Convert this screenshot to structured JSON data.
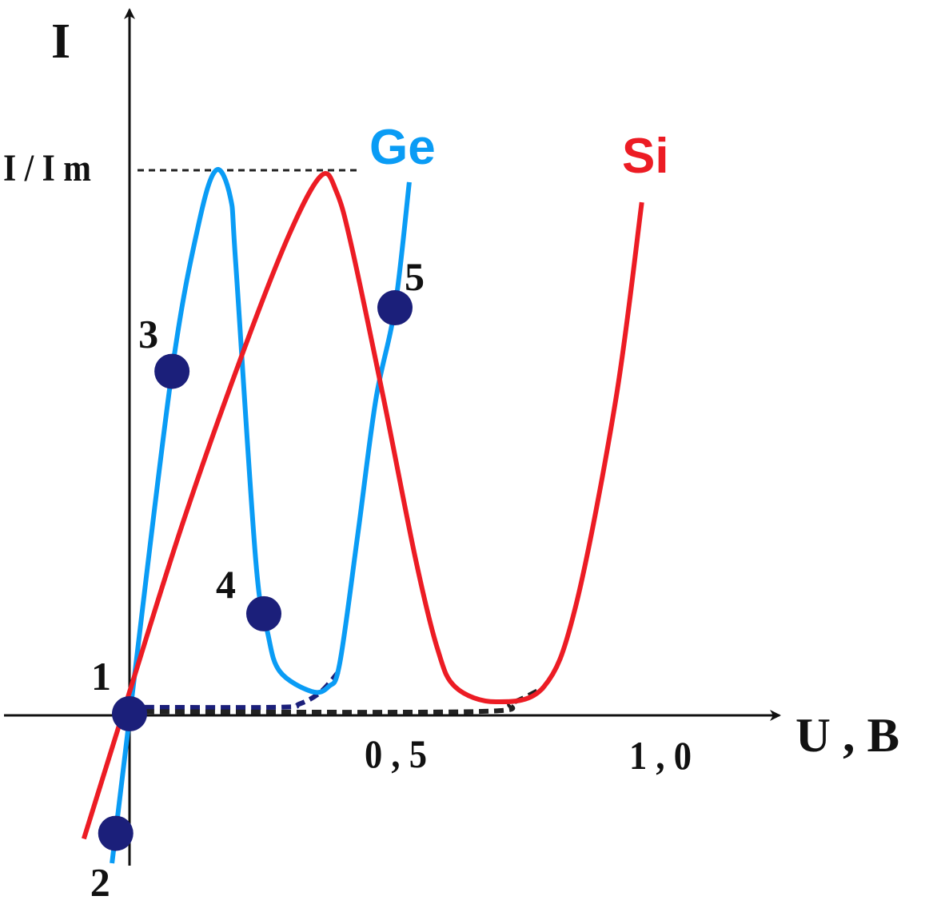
{
  "chart_data": {
    "type": "line",
    "title": "",
    "y_axis_label": "I",
    "y_tick_label": "I / I m",
    "x_axis_label": "U , B",
    "x_ticks": [
      {
        "value": 0.5,
        "label": "0 , 5"
      },
      {
        "value": 1.0,
        "label": "1 , 0"
      }
    ],
    "xlim": [
      -0.24,
      1.22
    ],
    "ylim": [
      -0.28,
      1.3
    ],
    "peak_level": 1.0,
    "colors": {
      "Ge": "#0a9cf5",
      "Si": "#ec1c24",
      "points": "#1b1f7a",
      "axis": "#111111"
    },
    "series": [
      {
        "name": "Ge",
        "x": [
          -0.033,
          0.005,
          0.08,
          0.13,
          0.163,
          0.19,
          0.2,
          0.238,
          0.26,
          0.283,
          0.343,
          0.375,
          0.396,
          0.43,
          0.464,
          0.5,
          0.527
        ],
        "y": [
          -0.275,
          0.034,
          0.63,
          0.9,
          1.0,
          0.95,
          0.83,
          0.28,
          0.15,
          0.078,
          0.041,
          0.05,
          0.093,
          0.33,
          0.578,
          0.747,
          0.978
        ]
      },
      {
        "name": "Si",
        "x": [
          -0.086,
          0.0,
          0.1,
          0.208,
          0.3,
          0.361,
          0.39,
          0.419,
          0.479,
          0.539,
          0.58,
          0.614,
          0.69,
          0.78,
          0.84,
          0.916,
          0.965
        ],
        "y": [
          -0.23,
          0.04,
          0.35,
          0.65,
          0.88,
          0.99,
          0.96,
          0.857,
          0.578,
          0.284,
          0.12,
          0.049,
          0.022,
          0.049,
          0.196,
          0.578,
          0.941
        ]
      }
    ],
    "dashed_curves": [
      {
        "color": "#1b1f7a",
        "x": [
          0.0,
          0.28,
          0.32,
          0.36,
          0.396
        ],
        "y": [
          0.012,
          0.012,
          0.018,
          0.04,
          0.08
        ]
      },
      {
        "color": "#222222",
        "x": [
          0.0,
          0.65,
          0.72,
          0.78
        ],
        "y": [
          0.004,
          0.004,
          0.02,
          0.048
        ]
      }
    ],
    "points": [
      {
        "label": "1",
        "x": 0.0,
        "y": 0.0
      },
      {
        "label": "2",
        "x": -0.026,
        "y": -0.22
      },
      {
        "label": "3",
        "x": 0.08,
        "y": 0.63
      },
      {
        "label": "4",
        "x": 0.253,
        "y": 0.184
      },
      {
        "label": "5",
        "x": 0.5,
        "y": 0.747
      }
    ]
  }
}
